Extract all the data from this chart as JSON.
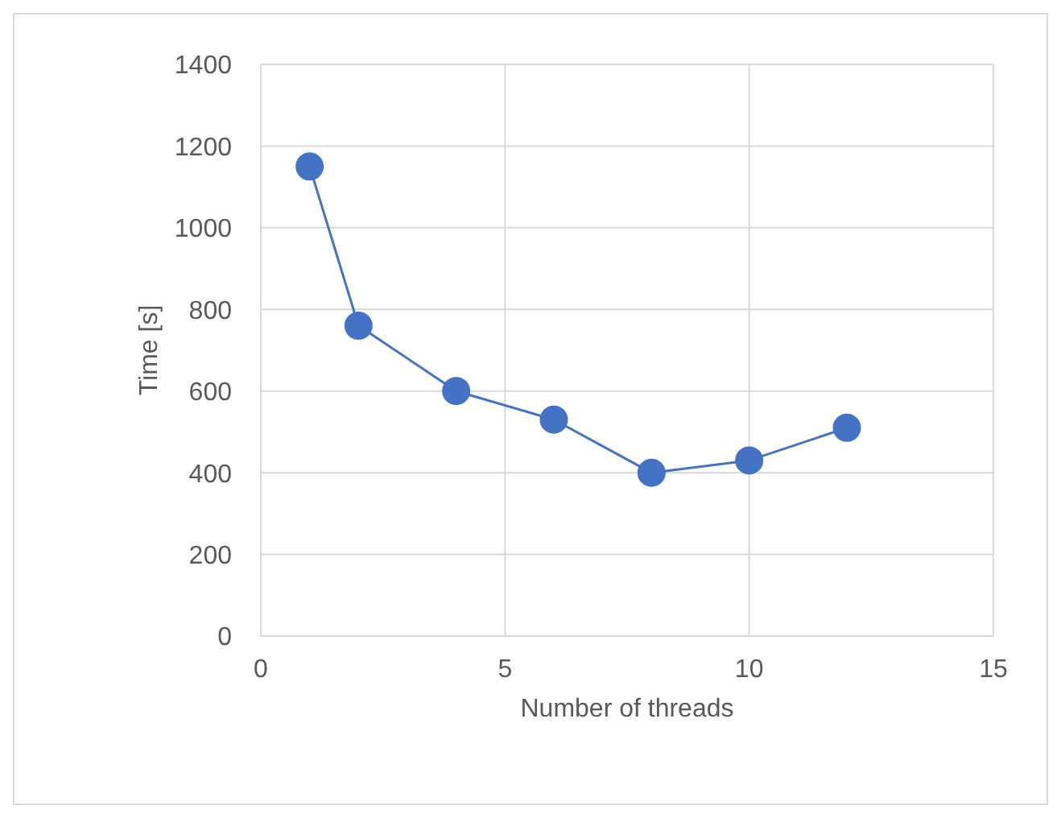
{
  "chart_data": {
    "type": "line",
    "xlabel": "Number of threads",
    "ylabel": "Time [s]",
    "x": [
      1,
      2,
      4,
      6,
      8,
      10,
      12
    ],
    "series": [
      {
        "color": "#4472c4",
        "values": [
          1150,
          760,
          600,
          530,
          400,
          430,
          510
        ]
      }
    ],
    "xlim": [
      0,
      15
    ],
    "xticks": [
      0,
      5,
      10,
      15
    ],
    "ylim": [
      0,
      1400
    ],
    "yticks": [
      0,
      200,
      400,
      600,
      800,
      1000,
      1200,
      1400
    ],
    "grid": true,
    "marker": "circle",
    "line_style": "solid"
  }
}
